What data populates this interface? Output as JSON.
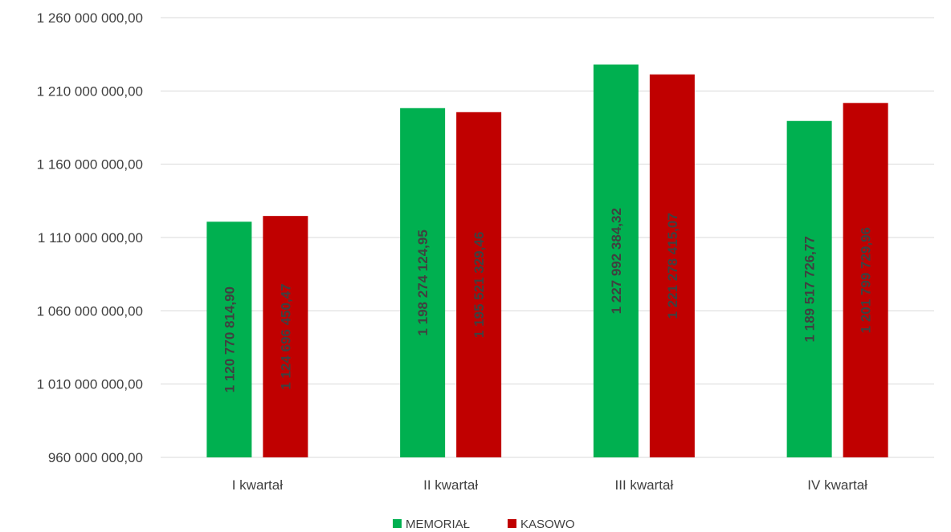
{
  "chart_data": {
    "type": "bar",
    "title": "",
    "xlabel": "",
    "ylabel": "",
    "categories": [
      "I kwartał",
      "II kwartał",
      "III kwartał",
      "IV kwartał"
    ],
    "ylim": [
      960000000,
      1260000000
    ],
    "yticks": [
      960000000,
      1010000000,
      1060000000,
      1110000000,
      1160000000,
      1210000000,
      1260000000
    ],
    "ytick_labels": [
      "960 000 000,00",
      "1 010 000 000,00",
      "1 060 000 000,00",
      "1 110 000 000,00",
      "1 160 000 000,00",
      "1 210 000 000,00",
      "1 260 000 000,00"
    ],
    "grid": true,
    "legend_position": "bottom",
    "series": [
      {
        "name": "MEMORIAŁ",
        "color": "#00B050",
        "values": [
          1120770814.9,
          1198274124.95,
          1227992384.32,
          1189517726.77
        ],
        "labels": [
          "1 120 770 814,90",
          "1 198 274 124,95",
          "1 227 992 384,32",
          "1 189 517 726,77"
        ]
      },
      {
        "name": "KASOWO",
        "color": "#C00000",
        "values": [
          1124696450.47,
          1195521329.46,
          1221278415.07,
          1201799729.96
        ],
        "labels": [
          "1 124 696 450,47",
          "1 195 521 329,46",
          "1 221 278 415,07",
          "1 201 799 729,96"
        ]
      }
    ]
  }
}
